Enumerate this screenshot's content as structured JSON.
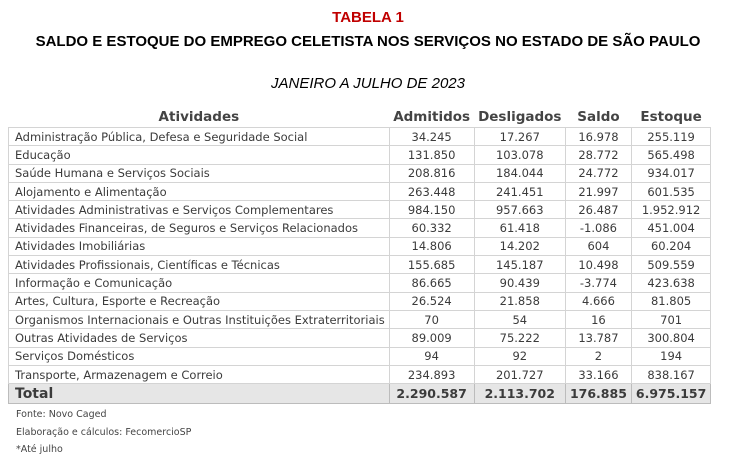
{
  "header": {
    "tabela": "TABELA 1",
    "titulo": "SALDO E ESTOQUE DO EMPREGO CELETISTA NOS SERVIÇOS NO ESTADO DE SÃO PAULO",
    "periodo": "JANEIRO A JULHO DE 2023"
  },
  "table": {
    "columns": [
      "Atividades",
      "Admitidos",
      "Desligados",
      "Saldo",
      "Estoque"
    ],
    "rows": [
      [
        "Administração Pública, Defesa e Seguridade Social",
        "34.245",
        "17.267",
        "16.978",
        "255.119"
      ],
      [
        "Educação",
        "131.850",
        "103.078",
        "28.772",
        "565.498"
      ],
      [
        "Saúde Humana e Serviços Sociais",
        "208.816",
        "184.044",
        "24.772",
        "934.017"
      ],
      [
        "Alojamento e Alimentação",
        "263.448",
        "241.451",
        "21.997",
        "601.535"
      ],
      [
        "Atividades Administrativas e Serviços Complementares",
        "984.150",
        "957.663",
        "26.487",
        "1.952.912"
      ],
      [
        "Atividades Financeiras, de Seguros e Serviços Relacionados",
        "60.332",
        "61.418",
        "-1.086",
        "451.004"
      ],
      [
        "Atividades Imobiliárias",
        "14.806",
        "14.202",
        "604",
        "60.204"
      ],
      [
        "Atividades Profissionais, Científicas e Técnicas",
        "155.685",
        "145.187",
        "10.498",
        "509.559"
      ],
      [
        "Informação e Comunicação",
        "86.665",
        "90.439",
        "-3.774",
        "423.638"
      ],
      [
        "Artes, Cultura, Esporte e Recreação",
        "26.524",
        "21.858",
        "4.666",
        "81.805"
      ],
      [
        "Organismos Internacionais e Outras Instituições Extraterritoriais",
        "70",
        "54",
        "16",
        "701"
      ],
      [
        "Outras Atividades de Serviços",
        "89.009",
        "75.222",
        "13.787",
        "300.804"
      ],
      [
        "Serviços Domésticos",
        "94",
        "92",
        "2",
        "194"
      ],
      [
        "Transporte, Armazenagem e Correio",
        "234.893",
        "201.727",
        "33.166",
        "838.167"
      ]
    ],
    "total": [
      "Total",
      "2.290.587",
      "2.113.702",
      "176.885",
      "6.975.157"
    ]
  },
  "notes": {
    "fonte": "Fonte: Novo Caged",
    "elaboracao": "Elaboração e cálculos: FecomercioSP",
    "nota": "*Até julho"
  },
  "colors": {
    "tabela_title": "#c00000",
    "total_row_bg": "#e6e6e6",
    "border": "#d4d4d4"
  }
}
